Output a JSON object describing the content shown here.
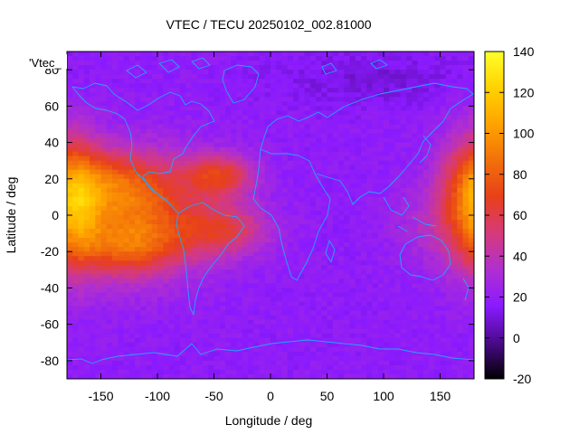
{
  "chart_data": {
    "type": "heatmap",
    "title": "VTEC / TECU 20250102_002.81000",
    "xlabel": "Longitude / deg",
    "ylabel": "Latitude / deg",
    "key_label": "'Vtec_",
    "xlim": [
      -180,
      180
    ],
    "ylim": [
      -90,
      90
    ],
    "x_ticks": [
      -150,
      -100,
      -50,
      0,
      50,
      100,
      150
    ],
    "y_ticks": [
      -80,
      -60,
      -40,
      -20,
      0,
      20,
      40,
      60,
      80
    ],
    "colorbar": {
      "range": [
        -20,
        140
      ],
      "ticks": [
        -20,
        0,
        20,
        40,
        60,
        80,
        100,
        120,
        140
      ],
      "palette": [
        "#000000",
        "#4a0a8a",
        "#8a1aff",
        "#b02fd0",
        "#d63a7a",
        "#e8401a",
        "#f2700a",
        "#ffa300",
        "#ffd200",
        "#ffff2a"
      ]
    },
    "grid": false,
    "legend": "top-left",
    "map_line_color": "#1fa8ff",
    "background_level": 18,
    "enhancements": [
      {
        "lon": -120,
        "lat": 0,
        "sigma_lon": 45,
        "sigma_lat": 22,
        "peak": 58
      },
      {
        "lon": -140,
        "lat": 18,
        "sigma_lon": 30,
        "sigma_lat": 12,
        "peak": 30
      },
      {
        "lon": -125,
        "lat": -18,
        "sigma_lon": 30,
        "sigma_lat": 10,
        "peak": 30
      },
      {
        "lon": -45,
        "lat": 22,
        "sigma_lon": 22,
        "sigma_lat": 8,
        "peak": 45
      },
      {
        "lon": -40,
        "lat": -8,
        "sigma_lon": 28,
        "sigma_lat": 10,
        "peak": 35
      },
      {
        "lon": -170,
        "lat": 5,
        "sigma_lon": 15,
        "sigma_lat": 25,
        "peak": 35
      },
      {
        "lon": 175,
        "lat": 10,
        "sigma_lon": 20,
        "sigma_lat": 25,
        "peak": 38
      },
      {
        "lon": 140,
        "lat": -5,
        "sigma_lon": 25,
        "sigma_lat": 15,
        "peak": 10
      },
      {
        "lon": 90,
        "lat": 75,
        "sigma_lon": 60,
        "sigma_lat": 10,
        "peak": -8
      }
    ]
  }
}
